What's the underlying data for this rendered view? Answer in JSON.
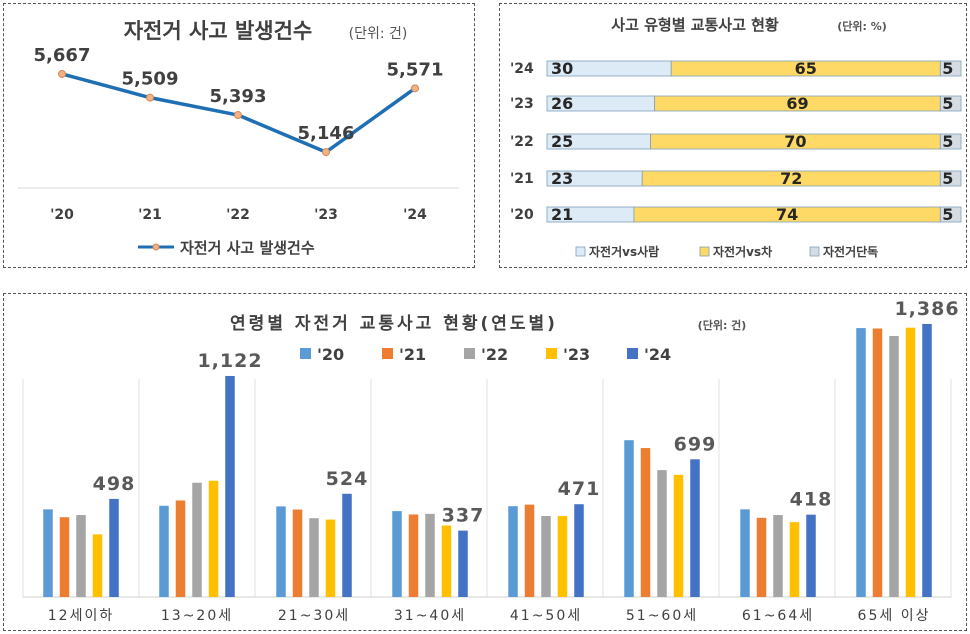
{
  "chart_data": [
    {
      "type": "line",
      "title": "자전거 사고 발생건수",
      "unit_note": "(단위: 건)",
      "categories": [
        "'20",
        "'21",
        "'22",
        "'23",
        "'24"
      ],
      "values": [
        5667,
        5509,
        5393,
        5146,
        5571
      ],
      "value_labels": [
        "5,667",
        "5,509",
        "5,393",
        "5,146",
        "5,571"
      ],
      "legend": "자전거 사고 발생건수",
      "line_color": "#1f6fb4",
      "marker_color": "#f4b183"
    },
    {
      "type": "bar",
      "orientation": "horizontal-stacked-percent",
      "title": "사고 유형별 교통사고 현황",
      "unit_note": "(단위: %)",
      "categories": [
        "'24",
        "'23",
        "'22",
        "'21",
        "'20"
      ],
      "series": [
        {
          "name": "자전거vs사람",
          "values": [
            30,
            26,
            25,
            23,
            21
          ],
          "color": "#ddebf7"
        },
        {
          "name": "자전거vs차",
          "values": [
            65,
            69,
            70,
            72,
            74
          ],
          "color": "#ffd966"
        },
        {
          "name": "자전거단독",
          "values": [
            5,
            5,
            5,
            5,
            5
          ],
          "color": "#d6dce4"
        }
      ]
    },
    {
      "type": "bar",
      "title": "연령별 자전거 교통사고 현황(연도별)",
      "unit_note": "(단위: 건)",
      "categories": [
        "12세이하",
        "13~20세",
        "21~30세",
        "31~40세",
        "41~50세",
        "51~60세",
        "61~64세",
        "65세 이상"
      ],
      "series": [
        {
          "name": "'20",
          "color": "#5b9bd5",
          "values": [
            445,
            463,
            460,
            436,
            461,
            796,
            445,
            1365
          ]
        },
        {
          "name": "'21",
          "color": "#ed7d31",
          "values": [
            405,
            490,
            444,
            419,
            469,
            756,
            402,
            1363
          ]
        },
        {
          "name": "'22",
          "color": "#a5a5a5",
          "values": [
            416,
            580,
            400,
            422,
            411,
            644,
            416,
            1325
          ]
        },
        {
          "name": "'23",
          "color": "#ffc000",
          "values": [
            318,
            590,
            393,
            363,
            411,
            620,
            380,
            1367
          ]
        },
        {
          "name": "'24",
          "color": "#4472c4",
          "values": [
            498,
            1122,
            524,
            337,
            471,
            699,
            418,
            1386
          ]
        }
      ],
      "value_labels": [
        "498",
        "1,122",
        "524",
        "337",
        "471",
        "699",
        "418",
        "1,386"
      ],
      "ylim": [
        0,
        1500
      ]
    }
  ]
}
